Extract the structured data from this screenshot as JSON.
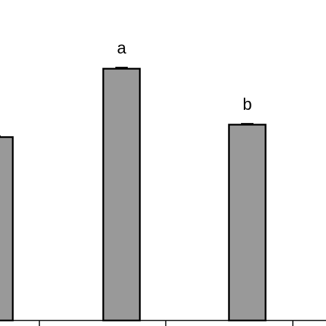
{
  "chart_data": {
    "type": "bar",
    "categories": [
      "",
      "",
      ""
    ],
    "values": [
      29.5,
      40.5,
      31.5
    ],
    "errors": [
      0.15,
      0.2,
      0.15
    ],
    "annotations": [
      "",
      "a",
      "b"
    ],
    "title": "",
    "xlabel": "",
    "ylabel": "",
    "ylim": [
      0,
      45
    ],
    "grid": false,
    "bar_color": "#999999",
    "edge_color": "#000000"
  }
}
